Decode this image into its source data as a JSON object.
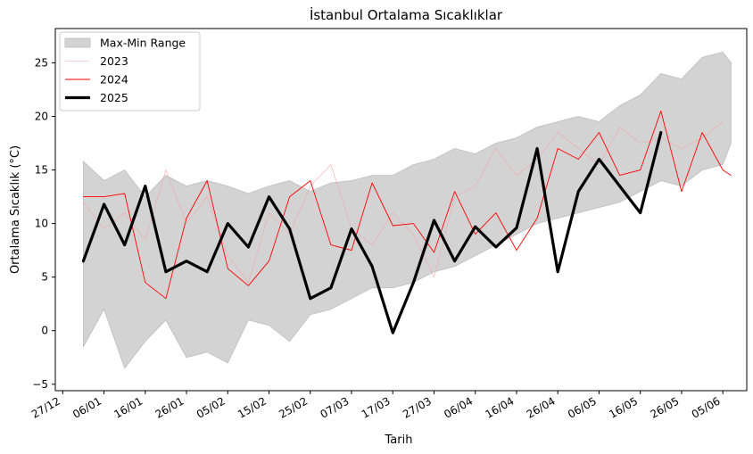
{
  "chart_data": {
    "type": "line",
    "title": "İstanbul Ortalama Sıcaklıklar",
    "xlabel": "Tarih",
    "ylabel": "Ortalama Sıcaklık (°C)",
    "x_tick_labels": [
      "27/12",
      "06/01",
      "16/01",
      "26/01",
      "05/02",
      "15/02",
      "25/02",
      "07/03",
      "17/03",
      "27/03",
      "06/04",
      "16/04",
      "26/04",
      "06/05",
      "16/05",
      "26/05",
      "05/06"
    ],
    "x_tick_offsets": [
      -5,
      5,
      15,
      25,
      35,
      45,
      55,
      65,
      75,
      85,
      95,
      105,
      115,
      125,
      135,
      145,
      155
    ],
    "xlim_days": [
      -6.8,
      160.8
    ],
    "y_ticks": [
      -5,
      0,
      5,
      10,
      15,
      20,
      25
    ],
    "ylim": [
      -5.6,
      28.2
    ],
    "grid": false,
    "legend_placement": "top-left",
    "series": [
      {
        "name": "Max-Min Range",
        "kind": "area",
        "color": "#d3d3d3",
        "x": [
          0,
          5,
          10,
          15,
          20,
          25,
          30,
          35,
          40,
          45,
          50,
          55,
          60,
          65,
          70,
          75,
          80,
          85,
          90,
          95,
          100,
          105,
          110,
          115,
          120,
          125,
          130,
          135,
          140,
          145,
          150,
          155,
          157
        ],
        "upper": [
          15.8,
          14.0,
          15.0,
          12.5,
          14.5,
          13.5,
          14.0,
          13.5,
          12.8,
          13.5,
          14.0,
          13.0,
          13.8,
          14.0,
          14.5,
          14.5,
          15.5,
          16.0,
          17.0,
          16.5,
          17.5,
          18.0,
          19.0,
          19.5,
          20.0,
          19.5,
          21.0,
          22.0,
          24.0,
          23.5,
          25.5,
          26.0,
          25.0
        ],
        "lower": [
          -1.5,
          2.0,
          -3.5,
          -1.0,
          1.0,
          -2.5,
          -2.0,
          -3.0,
          1.0,
          0.5,
          -1.0,
          1.5,
          2.0,
          3.0,
          4.0,
          4.0,
          4.5,
          5.5,
          6.0,
          7.0,
          8.0,
          9.0,
          10.0,
          10.5,
          11.0,
          11.5,
          12.0,
          13.0,
          14.0,
          13.5,
          15.0,
          15.5,
          17.5
        ]
      },
      {
        "name": "2023",
        "kind": "line",
        "color": "#f4a6a6",
        "x": [
          0,
          5,
          10,
          15,
          20,
          25,
          30,
          35,
          40,
          45,
          50,
          55,
          60,
          65,
          70,
          75,
          80,
          85,
          90,
          95,
          100,
          105,
          110,
          115,
          120,
          125,
          130,
          135,
          140,
          145,
          150,
          155
        ],
        "y": [
          12.0,
          9.5,
          11.0,
          8.5,
          15.0,
          10.0,
          12.5,
          7.0,
          4.5,
          11.0,
          9.0,
          13.5,
          15.5,
          9.5,
          8.0,
          11.0,
          9.0,
          5.0,
          12.5,
          13.5,
          17.0,
          14.5,
          16.0,
          18.5,
          17.0,
          15.5,
          19.0,
          17.5,
          18.0,
          17.0,
          18.0,
          19.5
        ]
      },
      {
        "name": "2024",
        "kind": "line",
        "color": "#ff0000",
        "x": [
          0,
          5,
          10,
          15,
          20,
          25,
          30,
          35,
          40,
          45,
          50,
          55,
          60,
          65,
          70,
          75,
          80,
          85,
          90,
          95,
          100,
          105,
          110,
          115,
          120,
          125,
          130,
          135,
          140,
          145,
          150,
          155,
          157
        ],
        "y": [
          12.5,
          12.5,
          12.8,
          4.5,
          3.0,
          10.5,
          14.0,
          5.8,
          4.2,
          6.5,
          12.5,
          14.0,
          8.0,
          7.5,
          13.8,
          9.8,
          10.0,
          7.3,
          13.0,
          9.0,
          11.0,
          7.5,
          10.5,
          17.0,
          16.0,
          18.5,
          14.5,
          15.0,
          20.5,
          13.0,
          18.5,
          15.0,
          14.5
        ]
      },
      {
        "name": "2025",
        "kind": "line",
        "color": "#000000",
        "x": [
          0,
          5,
          10,
          15,
          20,
          25,
          30,
          35,
          40,
          45,
          50,
          55,
          60,
          65,
          70,
          75,
          80,
          85,
          90,
          95,
          100,
          105,
          110,
          115,
          120,
          125,
          130,
          135,
          140
        ],
        "y": [
          6.5,
          11.8,
          8.0,
          13.5,
          5.5,
          6.5,
          5.5,
          10.0,
          7.8,
          12.5,
          9.5,
          3.0,
          4.0,
          9.5,
          6.0,
          -0.2,
          4.5,
          10.3,
          6.5,
          9.7,
          7.8,
          9.6,
          17.0,
          5.5,
          13.0,
          16.0,
          13.5,
          11.0,
          18.5
        ]
      }
    ]
  }
}
